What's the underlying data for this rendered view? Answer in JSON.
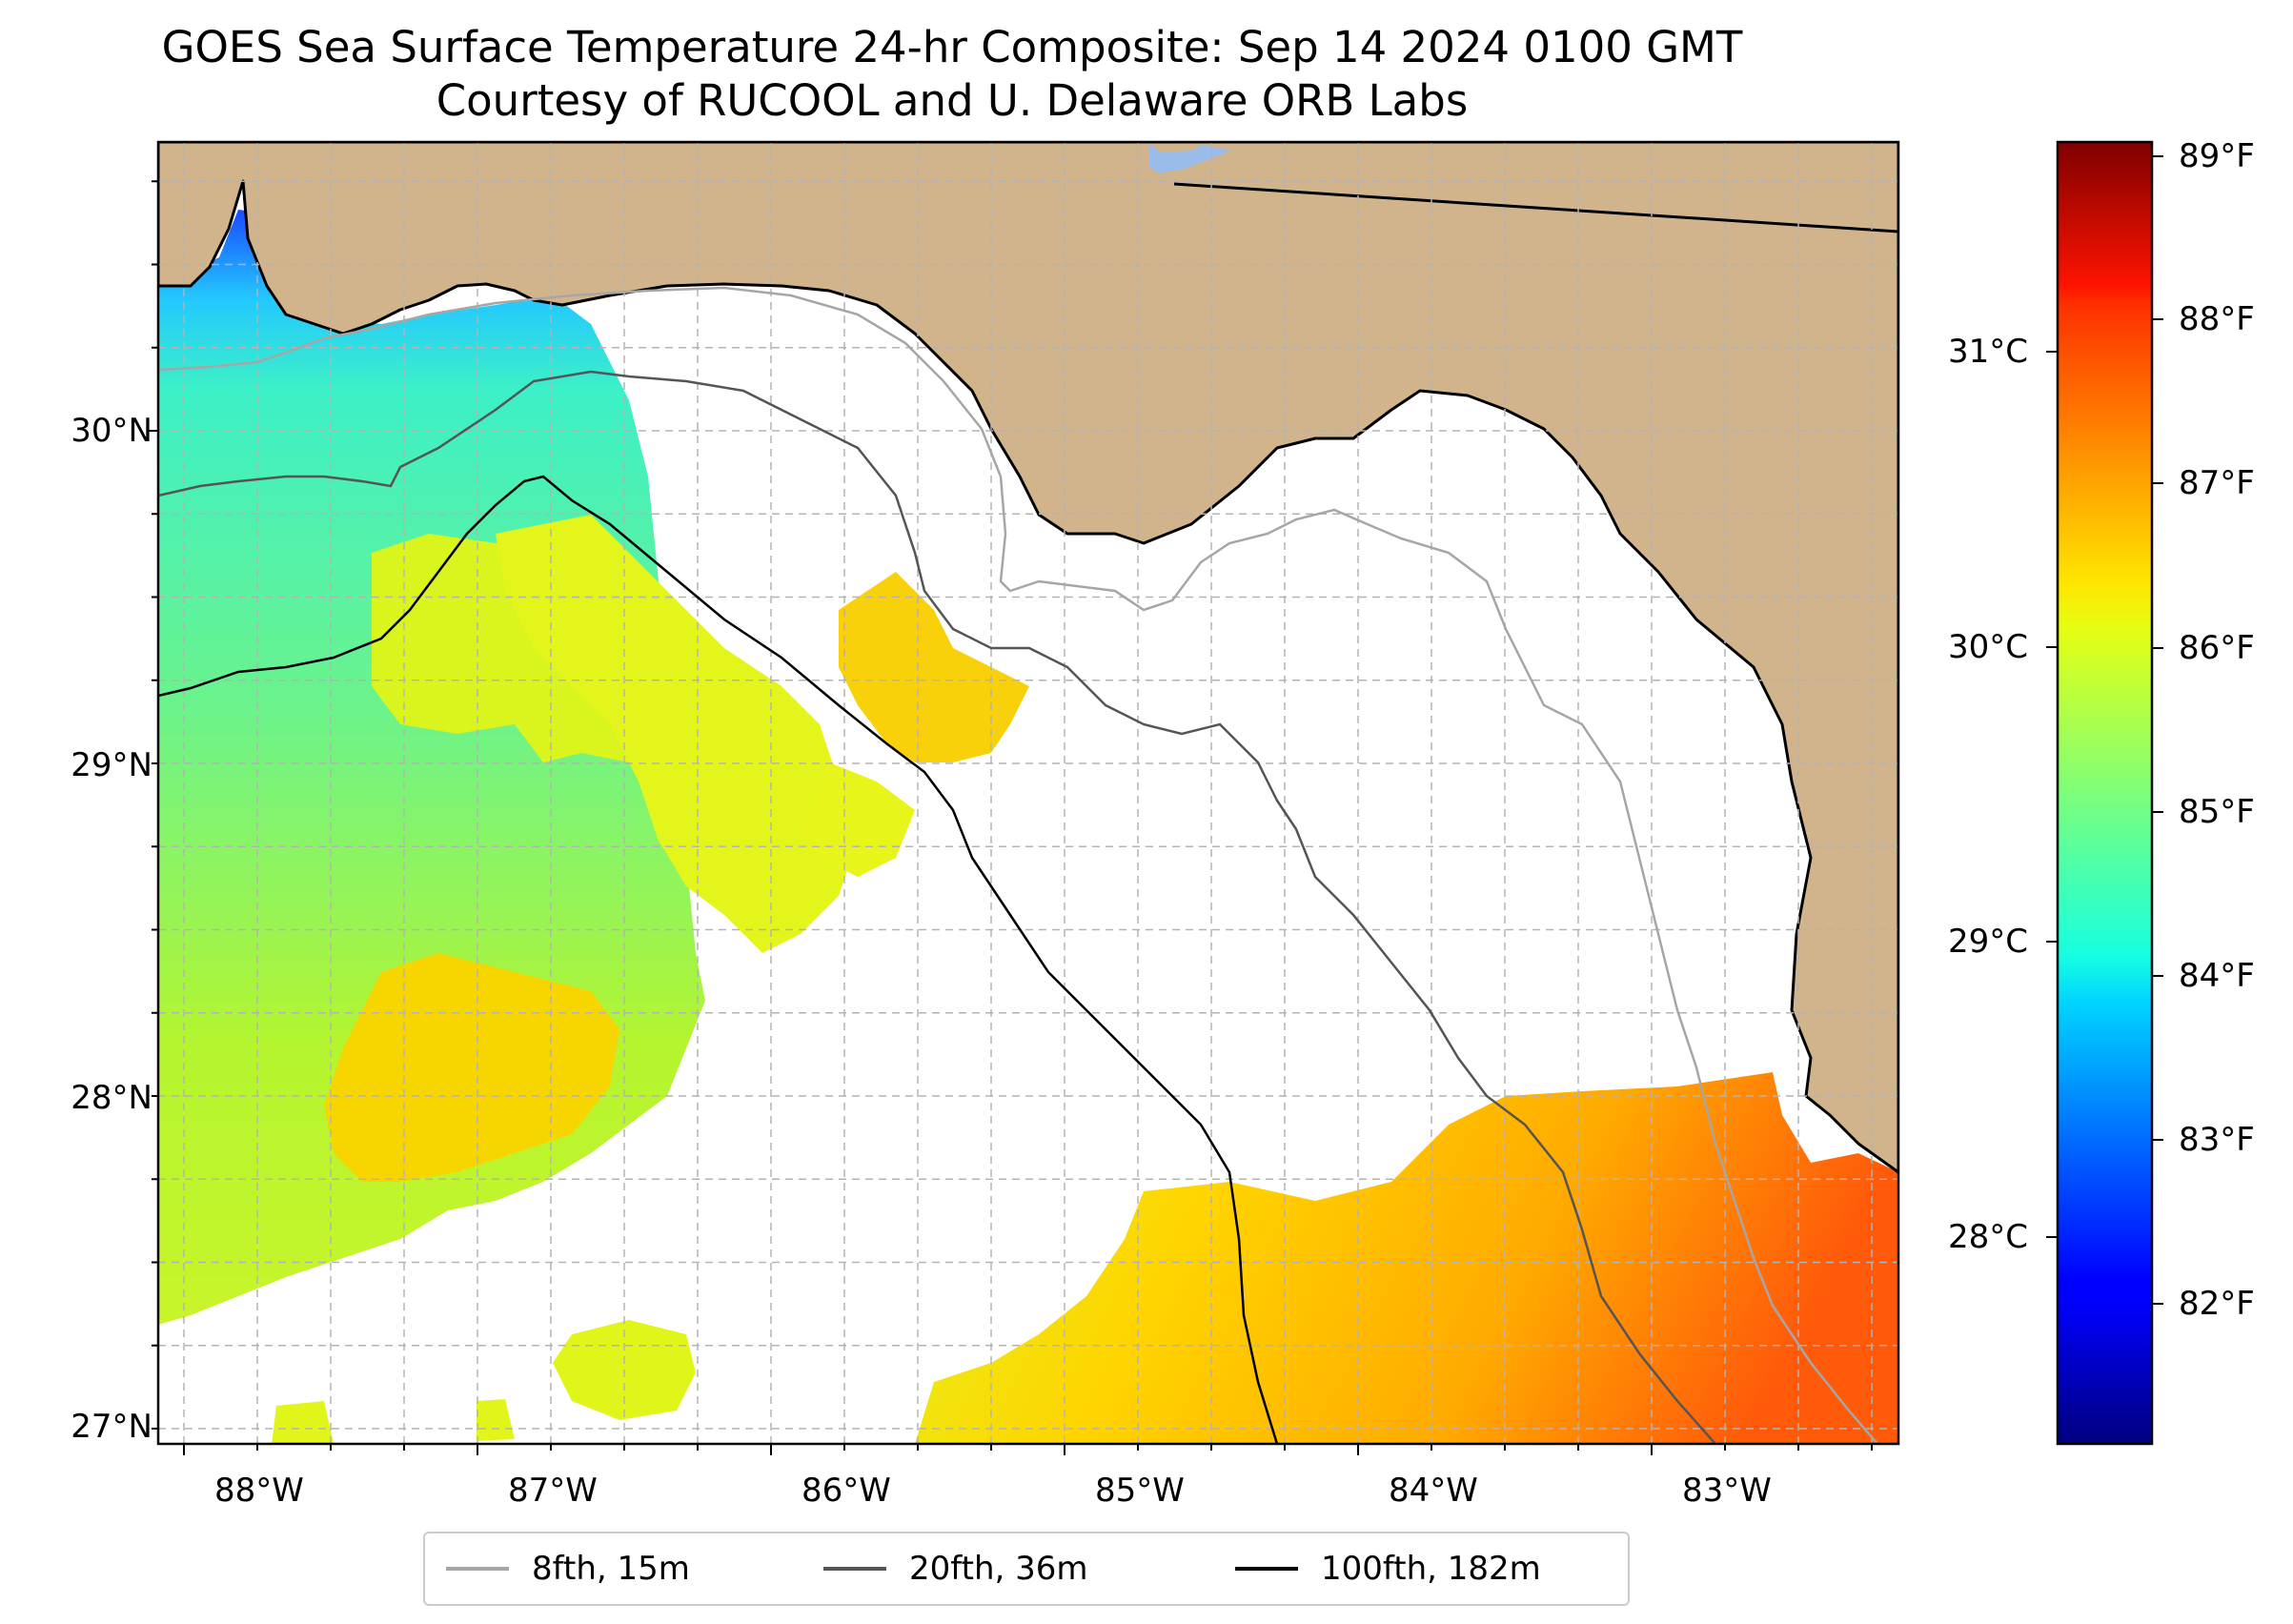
{
  "title": "GOES Sea Surface Temperature 24-hr Composite: Sep 14 2024 0100 GMT",
  "subtitle": "Courtesy of RUCOOL and U. Delaware ORB Labs",
  "colors": {
    "land": "#d2b48c",
    "water": "#ffffff",
    "lake": "#9bbbe8",
    "grid": "#b3b3b3",
    "iso_8fth": "#a6a6a6",
    "iso_20fth": "#555555",
    "iso_100fth": "#000000",
    "coast": "#000000"
  },
  "map": {
    "lat_labels": [
      "30°N",
      "29°N",
      "28°N",
      "27°N"
    ],
    "lon_labels": [
      "88°W",
      "87°W",
      "86°W",
      "85°W",
      "84°W",
      "83°W"
    ],
    "extent": {
      "lon": [
        -88.33,
        -82.4
      ],
      "lat": [
        26.93,
        30.85
      ]
    },
    "legend": [
      {
        "label": "8fth, 15m",
        "color": "#a6a6a6"
      },
      {
        "label": "20fth, 36m",
        "color": "#555555"
      },
      {
        "label": "100fth, 182m",
        "color": "#000000"
      }
    ]
  },
  "colorbar": {
    "colormap": "jet",
    "f_labels": [
      "89°F",
      "88°F",
      "87°F",
      "86°F",
      "85°F",
      "84°F",
      "83°F",
      "82°F"
    ],
    "c_labels": [
      "31°C",
      "30°C",
      "29°C",
      "28°C"
    ],
    "range_f": [
      81.2,
      89.1
    ]
  }
}
